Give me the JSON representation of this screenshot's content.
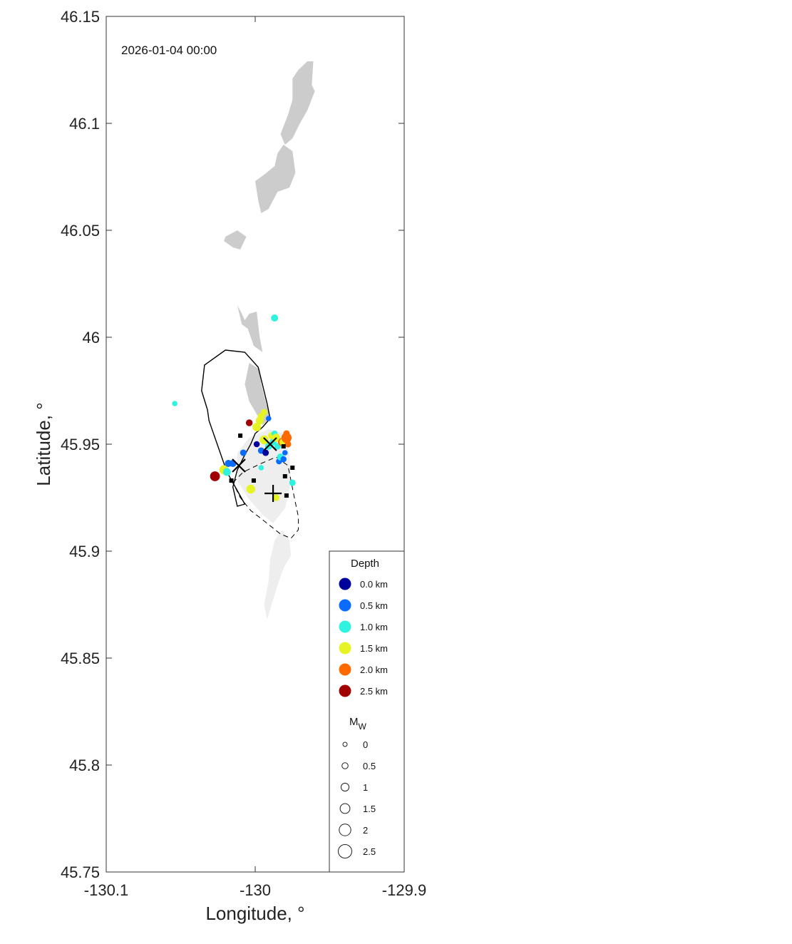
{
  "chart_data": {
    "type": "scatter",
    "timestamp": "2026-01-04 00:00",
    "xlabel": "Longitude, °",
    "ylabel": "Latitude, °",
    "xlim": [
      -130.1,
      -129.9
    ],
    "ylim": [
      45.75,
      46.15
    ],
    "x_ticks": [
      "-130.1",
      "-130",
      "-129.9"
    ],
    "x_tick_values": [
      -130.1,
      -130.0,
      -129.9
    ],
    "y_ticks": [
      "45.75",
      "45.8",
      "45.85",
      "45.9",
      "45.95",
      "46",
      "46.05",
      "46.1",
      "46.15"
    ],
    "y_tick_values": [
      45.75,
      45.8,
      45.85,
      45.9,
      45.95,
      46.0,
      46.05,
      46.1,
      46.15
    ],
    "grid": false,
    "colors": {
      "depth_0.0": "#00009a",
      "depth_0.5": "#0a6cff",
      "depth_1.0": "#2ff3e0",
      "depth_1.5": "#e6f423",
      "depth_2.0": "#ff6a00",
      "depth_2.5": "#a10000",
      "shaded_region": "#cccccc",
      "light_region": "#eeeeee"
    },
    "legend": {
      "placement": "bottom-right",
      "depth_title": "Depth",
      "depth_entries": [
        {
          "label": "0.0 km",
          "color": "#00009a"
        },
        {
          "label": "0.5 km",
          "color": "#0a6cff"
        },
        {
          "label": "1.0 km",
          "color": "#2ff3e0"
        },
        {
          "label": "1.5 km",
          "color": "#e6f423"
        },
        {
          "label": "2.0 km",
          "color": "#ff6a00"
        },
        {
          "label": "2.5 km",
          "color": "#a10000"
        }
      ],
      "mw_title": "M",
      "mw_title_sub": "W",
      "mw_entries": [
        {
          "label": "0",
          "mw": 0
        },
        {
          "label": "0.5",
          "mw": 0.5
        },
        {
          "label": "1",
          "mw": 1
        },
        {
          "label": "1.5",
          "mw": 1.5
        },
        {
          "label": "2",
          "mw": 2
        },
        {
          "label": "2.5",
          "mw": 2.5
        }
      ]
    },
    "earthquakes": [
      {
        "lon": -130.054,
        "lat": 45.969,
        "depth": 1.0,
        "mw": 0.5
      },
      {
        "lon": -129.987,
        "lat": 46.009,
        "depth": 1.0,
        "mw": 1.0
      },
      {
        "lon": -130.027,
        "lat": 45.935,
        "depth": 2.5,
        "mw": 1.8
      },
      {
        "lon": -130.021,
        "lat": 45.938,
        "depth": 1.3,
        "mw": 1.6
      },
      {
        "lon": -130.019,
        "lat": 45.937,
        "depth": 1.1,
        "mw": 1.2
      },
      {
        "lon": -130.018,
        "lat": 45.941,
        "depth": 0.6,
        "mw": 1.0
      },
      {
        "lon": -130.015,
        "lat": 45.941,
        "depth": 0.4,
        "mw": 1.0
      },
      {
        "lon": -130.008,
        "lat": 45.946,
        "depth": 0.3,
        "mw": 0.8
      },
      {
        "lon": -130.003,
        "lat": 45.929,
        "depth": 1.5,
        "mw": 1.5
      },
      {
        "lon": -130.004,
        "lat": 45.96,
        "depth": 2.5,
        "mw": 0.9
      },
      {
        "lon": -129.999,
        "lat": 45.958,
        "depth": 1.5,
        "mw": 1.4
      },
      {
        "lon": -129.997,
        "lat": 45.961,
        "depth": 1.6,
        "mw": 1.2
      },
      {
        "lon": -129.996,
        "lat": 45.963,
        "depth": 1.7,
        "mw": 1.0
      },
      {
        "lon": -129.994,
        "lat": 45.965,
        "depth": 1.7,
        "mw": 0.8
      },
      {
        "lon": -129.991,
        "lat": 45.962,
        "depth": 0.5,
        "mw": 0.5
      },
      {
        "lon": -129.999,
        "lat": 45.95,
        "depth": 0.2,
        "mw": 0.7
      },
      {
        "lon": -129.996,
        "lat": 45.947,
        "depth": 0.4,
        "mw": 0.8
      },
      {
        "lon": -129.994,
        "lat": 45.952,
        "depth": 1.6,
        "mw": 1.5
      },
      {
        "lon": -129.993,
        "lat": 45.946,
        "depth": 0.0,
        "mw": 0.8
      },
      {
        "lon": -129.991,
        "lat": 45.949,
        "depth": 0.8,
        "mw": 1.0
      },
      {
        "lon": -129.989,
        "lat": 45.954,
        "depth": 1.4,
        "mw": 1.0
      },
      {
        "lon": -129.988,
        "lat": 45.951,
        "depth": 1.2,
        "mw": 1.0
      },
      {
        "lon": -129.987,
        "lat": 45.955,
        "depth": 1.2,
        "mw": 0.7
      },
      {
        "lon": -129.986,
        "lat": 45.953,
        "depth": 1.6,
        "mw": 1.3
      },
      {
        "lon": -129.985,
        "lat": 45.949,
        "depth": 1.0,
        "mw": 0.8
      },
      {
        "lon": -129.984,
        "lat": 45.942,
        "depth": 0.4,
        "mw": 0.7
      },
      {
        "lon": -129.983,
        "lat": 45.944,
        "depth": 0.9,
        "mw": 1.0
      },
      {
        "lon": -129.981,
        "lat": 45.943,
        "depth": 0.7,
        "mw": 0.7
      },
      {
        "lon": -129.98,
        "lat": 45.946,
        "depth": 0.7,
        "mw": 0.5
      },
      {
        "lon": -129.982,
        "lat": 45.951,
        "depth": 2.0,
        "mw": 1.3
      },
      {
        "lon": -129.981,
        "lat": 45.951,
        "depth": 1.6,
        "mw": 1.2
      },
      {
        "lon": -129.979,
        "lat": 45.953,
        "depth": 2.1,
        "mw": 1.9
      },
      {
        "lon": -129.978,
        "lat": 45.95,
        "depth": 1.9,
        "mw": 0.8
      },
      {
        "lon": -129.979,
        "lat": 45.955,
        "depth": 1.8,
        "mw": 0.8
      },
      {
        "lon": -129.975,
        "lat": 45.932,
        "depth": 0.9,
        "mw": 0.8
      },
      {
        "lon": -129.996,
        "lat": 45.939,
        "depth": 1.0,
        "mw": 0.5
      },
      {
        "lon": -129.986,
        "lat": 45.925,
        "depth": 1.6,
        "mw": 0.9
      }
    ],
    "square_markers": [
      {
        "lon": -130.01,
        "lat": 45.954
      },
      {
        "lon": -130.016,
        "lat": 45.933
      },
      {
        "lon": -130.001,
        "lat": 45.933
      },
      {
        "lon": -129.981,
        "lat": 45.949
      },
      {
        "lon": -129.98,
        "lat": 45.935
      },
      {
        "lon": -129.975,
        "lat": 45.939
      },
      {
        "lon": -129.979,
        "lat": 45.926
      }
    ],
    "x_markers": [
      {
        "lon": -129.99,
        "lat": 45.95
      },
      {
        "lon": -130.011,
        "lat": 45.94
      }
    ],
    "plus_markers": [
      {
        "lon": -129.988,
        "lat": 45.927
      }
    ],
    "solid_outline": [
      [
        -130.032,
        45.966
      ],
      [
        -130.036,
        45.975
      ],
      [
        -130.034,
        45.987
      ],
      [
        -130.02,
        45.994
      ],
      [
        -130.007,
        45.993
      ],
      [
        -129.998,
        45.986
      ],
      [
        -129.992,
        45.969
      ],
      [
        -129.99,
        45.962
      ],
      [
        -129.995,
        45.958
      ],
      [
        -130.0,
        45.955
      ],
      [
        -130.003,
        45.95
      ],
      [
        -130.007,
        45.945
      ],
      [
        -130.012,
        45.938
      ],
      [
        -130.015,
        45.93
      ],
      [
        -130.012,
        45.921
      ],
      [
        -130.007,
        45.922
      ],
      [
        -130.019,
        45.937
      ],
      [
        -130.031,
        45.961
      ]
    ],
    "dashed_outline": [
      [
        -130.015,
        45.932
      ],
      [
        -130.008,
        45.937
      ],
      [
        -129.996,
        45.941
      ],
      [
        -129.986,
        45.944
      ],
      [
        -129.978,
        45.94
      ],
      [
        -129.974,
        45.926
      ],
      [
        -129.971,
        45.916
      ],
      [
        -129.971,
        45.91
      ],
      [
        -129.976,
        45.906
      ],
      [
        -129.983,
        45.908
      ],
      [
        -129.992,
        45.913
      ],
      [
        -130.003,
        45.919
      ],
      [
        -130.01,
        45.925
      ]
    ],
    "shaded_regions": [
      [
        [
          -129.965,
          46.129
        ],
        [
          -129.961,
          46.129
        ],
        [
          -129.962,
          46.118
        ],
        [
          -129.96,
          46.115
        ],
        [
          -129.965,
          46.106
        ],
        [
          -129.97,
          46.1
        ],
        [
          -129.975,
          46.093
        ],
        [
          -129.98,
          46.09
        ],
        [
          -129.983,
          46.095
        ],
        [
          -129.978,
          46.104
        ],
        [
          -129.975,
          46.111
        ],
        [
          -129.975,
          46.121
        ],
        [
          -129.971,
          46.125
        ]
      ],
      [
        [
          -129.981,
          46.09
        ],
        [
          -129.975,
          46.087
        ],
        [
          -129.973,
          46.077
        ],
        [
          -129.977,
          46.07
        ],
        [
          -129.985,
          46.068
        ],
        [
          -129.991,
          46.06
        ],
        [
          -129.996,
          46.058
        ],
        [
          -129.998,
          46.064
        ],
        [
          -130.0,
          46.073
        ],
        [
          -129.994,
          46.076
        ],
        [
          -129.987,
          46.08
        ],
        [
          -129.985,
          46.086
        ]
      ],
      [
        [
          -130.02,
          46.047
        ],
        [
          -130.012,
          46.05
        ],
        [
          -130.006,
          46.047
        ],
        [
          -130.01,
          46.041
        ],
        [
          -130.015,
          46.042
        ],
        [
          -130.021,
          46.045
        ]
      ],
      [
        [
          -130.012,
          46.015
        ],
        [
          -130.009,
          46.011
        ],
        [
          -130.007,
          46.008
        ],
        [
          -130.004,
          46.011
        ],
        [
          -129.999,
          46.012
        ],
        [
          -129.997,
          46.0
        ],
        [
          -129.995,
          45.993
        ],
        [
          -130.001,
          45.996
        ],
        [
          -130.005,
          46.004
        ],
        [
          -130.009,
          46.006
        ]
      ],
      [
        [
          -130.007,
          45.978
        ],
        [
          -130.004,
          45.988
        ],
        [
          -129.997,
          45.985
        ],
        [
          -129.996,
          45.978
        ],
        [
          -129.993,
          45.97
        ],
        [
          -129.99,
          45.962
        ],
        [
          -129.995,
          45.959
        ],
        [
          -129.999,
          45.964
        ],
        [
          -130.004,
          45.97
        ]
      ]
    ],
    "light_regions": [
      [
        [
          -130.012,
          45.946
        ],
        [
          -130.004,
          45.953
        ],
        [
          -129.991,
          45.957
        ],
        [
          -129.981,
          45.955
        ],
        [
          -129.977,
          45.945
        ],
        [
          -129.976,
          45.932
        ],
        [
          -129.98,
          45.92
        ],
        [
          -129.988,
          45.913
        ],
        [
          -129.995,
          45.917
        ],
        [
          -130.005,
          45.925
        ],
        [
          -130.012,
          45.933
        ]
      ],
      [
        [
          -129.982,
          45.91
        ],
        [
          -129.977,
          45.905
        ],
        [
          -129.976,
          45.898
        ],
        [
          -129.981,
          45.892
        ],
        [
          -129.985,
          45.884
        ],
        [
          -129.989,
          45.875
        ],
        [
          -129.992,
          45.868
        ],
        [
          -129.994,
          45.875
        ],
        [
          -129.991,
          45.886
        ],
        [
          -129.99,
          45.896
        ],
        [
          -129.987,
          45.905
        ]
      ]
    ]
  }
}
